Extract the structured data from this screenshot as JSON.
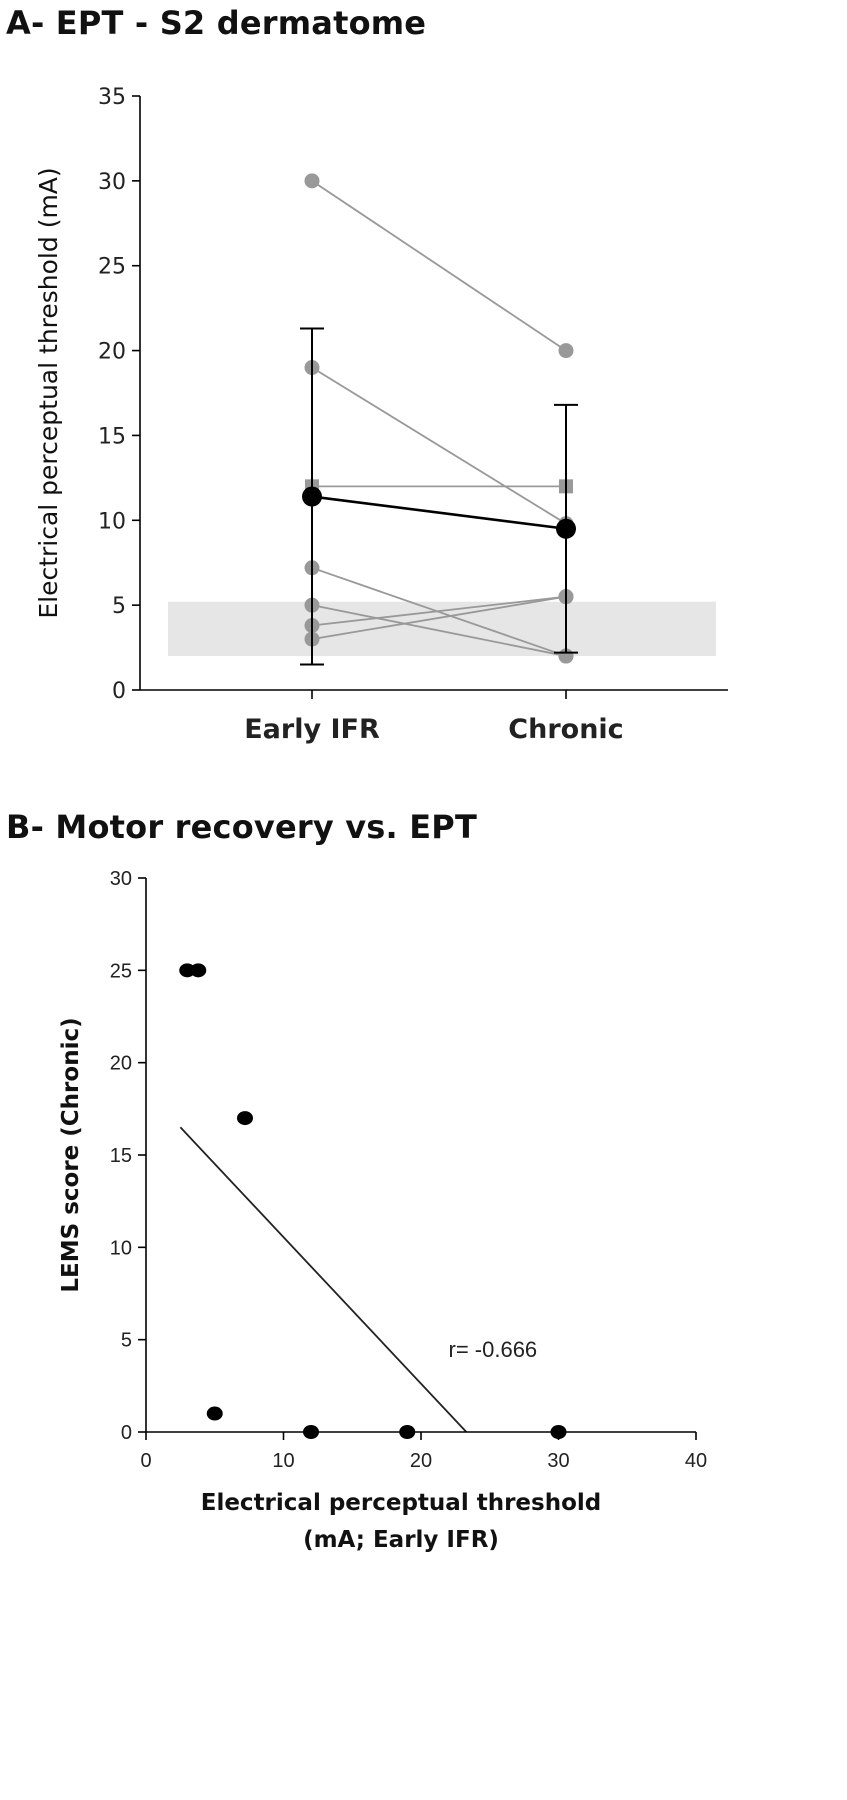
{
  "panels": {
    "a_title": "A- EPT - S2 dermatome",
    "b_title": "B- Motor recovery vs. EPT"
  },
  "colors": {
    "individual": "#999999",
    "mean": "#000000",
    "reference_band": "#e6e6e6",
    "axis": "#000000"
  },
  "chart_data": [
    {
      "type": "line",
      "title": "A- EPT - S2 dermatome",
      "ylabel": "Electrical perceptual threshold (mA)",
      "xlabel": "",
      "categories": [
        "Early IFR",
        "Chronic"
      ],
      "ylim": [
        0,
        35
      ],
      "yticks": [
        0,
        5,
        10,
        15,
        20,
        25,
        30,
        35
      ],
      "grid": false,
      "series": [
        {
          "values": [
            30,
            20
          ],
          "marker": "circle"
        },
        {
          "values": [
            19,
            9.8
          ],
          "marker": "circle"
        },
        {
          "values": [
            12,
            12
          ],
          "marker": "square"
        },
        {
          "values": [
            7.2,
            2.0
          ],
          "marker": "circle"
        },
        {
          "values": [
            5,
            2.0
          ],
          "marker": "circle"
        },
        {
          "values": [
            3.8,
            5.5
          ],
          "marker": "circle"
        },
        {
          "values": [
            3.0,
            5.5
          ],
          "marker": "circle"
        }
      ],
      "mean": {
        "values": [
          11.4,
          9.5
        ],
        "error_high": [
          21.3,
          16.8
        ],
        "error_low": [
          1.5,
          2.2
        ]
      },
      "reference_band": {
        "ymin": 2.0,
        "ymax": 5.2
      }
    },
    {
      "type": "scatter",
      "title": "B- Motor recovery vs. EPT",
      "xlabel_lines": [
        "Electrical perceptual threshold",
        "(mA; Early IFR)"
      ],
      "ylabel": "LEMS score (Chronic)",
      "xlim": [
        0,
        40
      ],
      "ylim": [
        0,
        30
      ],
      "xticks": [
        0,
        10,
        20,
        30,
        40
      ],
      "yticks": [
        0,
        5,
        10,
        15,
        20,
        25,
        30
      ],
      "grid": false,
      "points": [
        {
          "x": 3.0,
          "y": 25
        },
        {
          "x": 3.8,
          "y": 25
        },
        {
          "x": 7.2,
          "y": 17
        },
        {
          "x": 5.0,
          "y": 1
        },
        {
          "x": 12.0,
          "y": 0
        },
        {
          "x": 19.0,
          "y": 0
        },
        {
          "x": 30.0,
          "y": 0
        }
      ],
      "regression": {
        "x": [
          2.5,
          23.3
        ],
        "y": [
          16.5,
          0
        ]
      },
      "annotation": {
        "text": "r= -0.666",
        "x": 22,
        "y": 4.5
      }
    }
  ]
}
